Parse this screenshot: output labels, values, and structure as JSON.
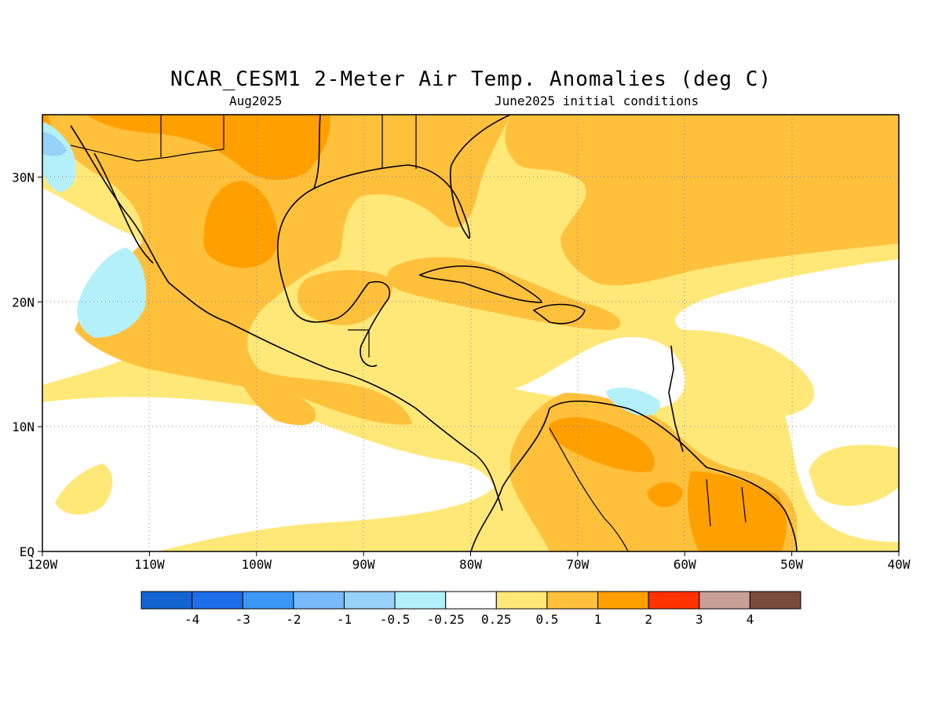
{
  "title": "NCAR_CESM1 2-Meter Air Temp. Anomalies (deg C)",
  "valid_month": "Aug2025",
  "init": "June2025 initial conditions",
  "map": {
    "lon_labels": [
      "120W",
      "110W",
      "100W",
      "90W",
      "80W",
      "70W",
      "60W",
      "50W",
      "40W"
    ],
    "lat_labels": [
      "EQ",
      "10N",
      "20N",
      "30N"
    ],
    "lon_range": [
      -120,
      -40
    ],
    "lat_range": [
      0,
      35
    ],
    "grid": true
  },
  "colorbar": {
    "colors": [
      "#1464d2",
      "#1e6eeb",
      "#3c96f5",
      "#78b9fa",
      "#96d2fa",
      "#b4f0fa",
      "#ffffff",
      "#ffe878",
      "#ffc03c",
      "#ffa000",
      "#ff3200",
      "#c8a096",
      "#7a4b3c"
    ],
    "labels": [
      "-4",
      "-3",
      "-2",
      "-1",
      "-0.5",
      "-0.25",
      "0.25",
      "0.5",
      "1",
      "2",
      "3",
      "4"
    ]
  },
  "palette": {
    "light": "#ffe878",
    "mid": "#ffc03c",
    "strong": "#ffa000",
    "cool": "#b4f0fa",
    "cooler": "#96d2fa"
  }
}
